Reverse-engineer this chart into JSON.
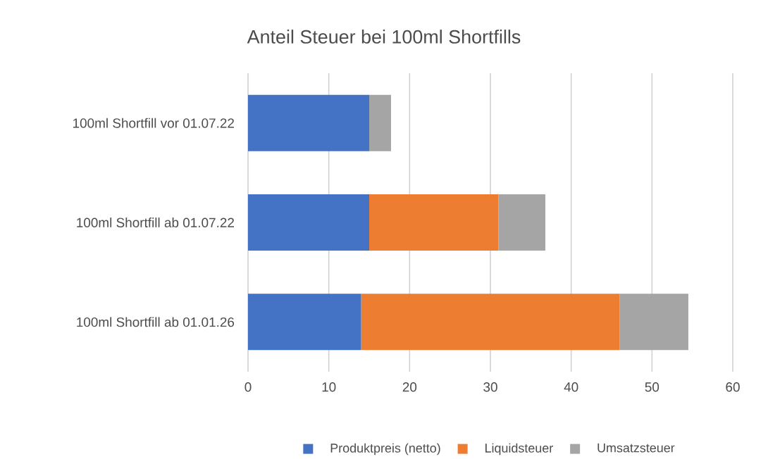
{
  "chart_data": {
    "type": "bar",
    "orientation": "horizontal",
    "stacked": true,
    "title": "Anteil Steuer bei 100ml Shortfills",
    "categories": [
      "100ml Shortfill vor 01.07.22",
      "100ml Shortfill ab 01.07.22",
      "100ml Shortfill ab 01.01.26"
    ],
    "series": [
      {
        "name": "Produktpreis (netto)",
        "color": "#4472c4",
        "values": [
          15,
          15,
          14
        ]
      },
      {
        "name": "Liquidsteuer",
        "color": "#ed7d31",
        "values": [
          0,
          16,
          32
        ]
      },
      {
        "name": "Umsatzsteuer",
        "color": "#a5a5a5",
        "values": [
          2.7,
          5.8,
          8.5
        ]
      }
    ],
    "xlim": [
      0,
      60
    ],
    "xticks": [
      0,
      10,
      20,
      30,
      40,
      50,
      60
    ],
    "grid": "x",
    "legend": "bottom"
  }
}
